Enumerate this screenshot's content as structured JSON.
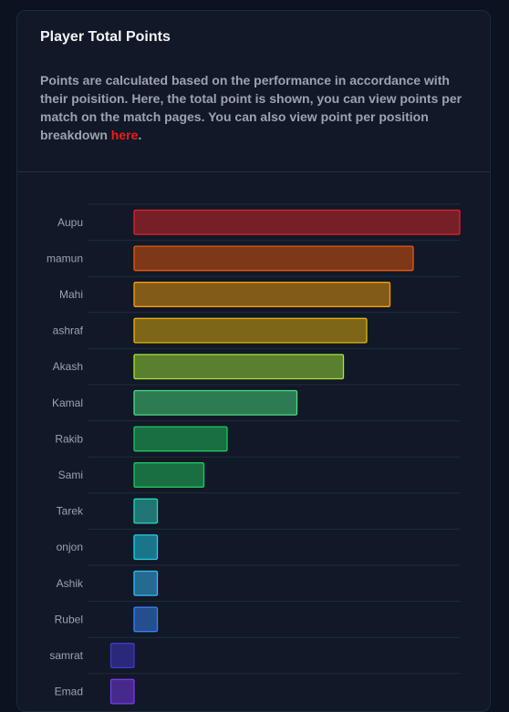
{
  "card": {
    "title": "Player Total Points",
    "description_before_link": "Points are calculated based on the performance in accordance with their poisition. Here, the total point is shown, you can view points per match on the match pages. You can also view point per position breakdown ",
    "link_text": "here",
    "description_after_link": "."
  },
  "chart_data": {
    "type": "bar",
    "orientation": "horizontal",
    "title": "",
    "xlabel": "",
    "ylabel": "",
    "grid": true,
    "categories": [
      "Aupu",
      "mamun",
      "Mahi",
      "ashraf",
      "Akash",
      "Kamal",
      "Rakib",
      "Sami",
      "Tarek",
      "onjon",
      "Ashik",
      "Rubel",
      "samrat",
      "Emad"
    ],
    "values": [
      140,
      120,
      110,
      100,
      90,
      70,
      40,
      30,
      10,
      10,
      10,
      10,
      -10,
      -10
    ],
    "xlim": [
      -20,
      140
    ],
    "colors": [
      "#dc2626",
      "#ea580c",
      "#f59e0b",
      "#eab308",
      "#a3e635",
      "#4ade80",
      "#22c55e",
      "#22c55e",
      "#2dd4bf",
      "#22d3ee",
      "#38bdf8",
      "#3b82f6",
      "#4338ca",
      "#7c3aed"
    ]
  }
}
